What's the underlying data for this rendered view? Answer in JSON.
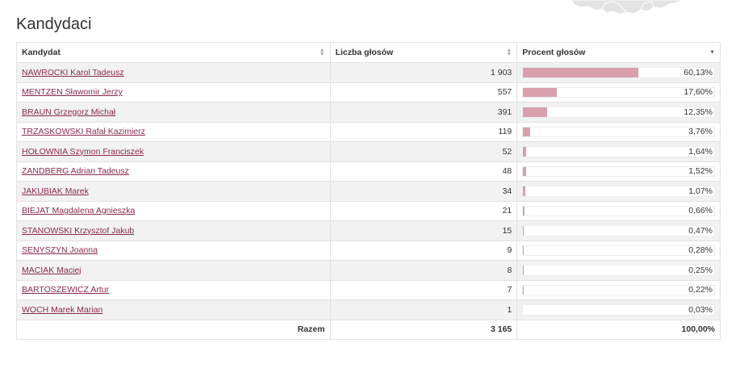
{
  "page": {
    "title": "Kandydaci"
  },
  "table": {
    "headers": {
      "candidate": "Kandydat",
      "votes": "Liczba głosów",
      "percent": "Procent głosów"
    },
    "rows": [
      {
        "name": "NAWROCKI Karol Tadeusz",
        "votes": "1 903",
        "percent": "60,13%",
        "share": 60.13
      },
      {
        "name": "MENTZEN Sławomir Jerzy",
        "votes": "557",
        "percent": "17,60%",
        "share": 17.6
      },
      {
        "name": "BRAUN Grzegorz Michał",
        "votes": "391",
        "percent": "12,35%",
        "share": 12.35
      },
      {
        "name": "TRZASKOWSKI Rafał Kazimierz",
        "votes": "119",
        "percent": "3,76%",
        "share": 3.76
      },
      {
        "name": "HOŁOWNIA Szymon Franciszek",
        "votes": "52",
        "percent": "1,64%",
        "share": 1.64
      },
      {
        "name": "ZANDBERG Adrian Tadeusz",
        "votes": "48",
        "percent": "1,52%",
        "share": 1.52
      },
      {
        "name": "JAKUBIAK Marek",
        "votes": "34",
        "percent": "1,07%",
        "share": 1.07
      },
      {
        "name": "BIEJAT Magdalena Agnieszka",
        "votes": "21",
        "percent": "0,66%",
        "share": 0.66
      },
      {
        "name": "STANOWSKI Krzysztof Jakub",
        "votes": "15",
        "percent": "0,47%",
        "share": 0.47
      },
      {
        "name": "SENYSZYN Joanna",
        "votes": "9",
        "percent": "0,28%",
        "share": 0.28
      },
      {
        "name": "MACIAK Maciej",
        "votes": "8",
        "percent": "0,25%",
        "share": 0.25
      },
      {
        "name": "BARTOSZEWICZ Artur",
        "votes": "7",
        "percent": "0,22%",
        "share": 0.22
      },
      {
        "name": "WOCH Marek Marian",
        "votes": "1",
        "percent": "0,03%",
        "share": 0.03
      }
    ],
    "footer": {
      "label": "Razem",
      "votes": "3 165",
      "percent": "100,00%"
    },
    "sort": {
      "column": "percent",
      "direction": "descending"
    }
  },
  "colors": {
    "link": "#8a2a48",
    "bar_fill": "#d8a0ad",
    "row_stripe": "#f2f2f2"
  }
}
